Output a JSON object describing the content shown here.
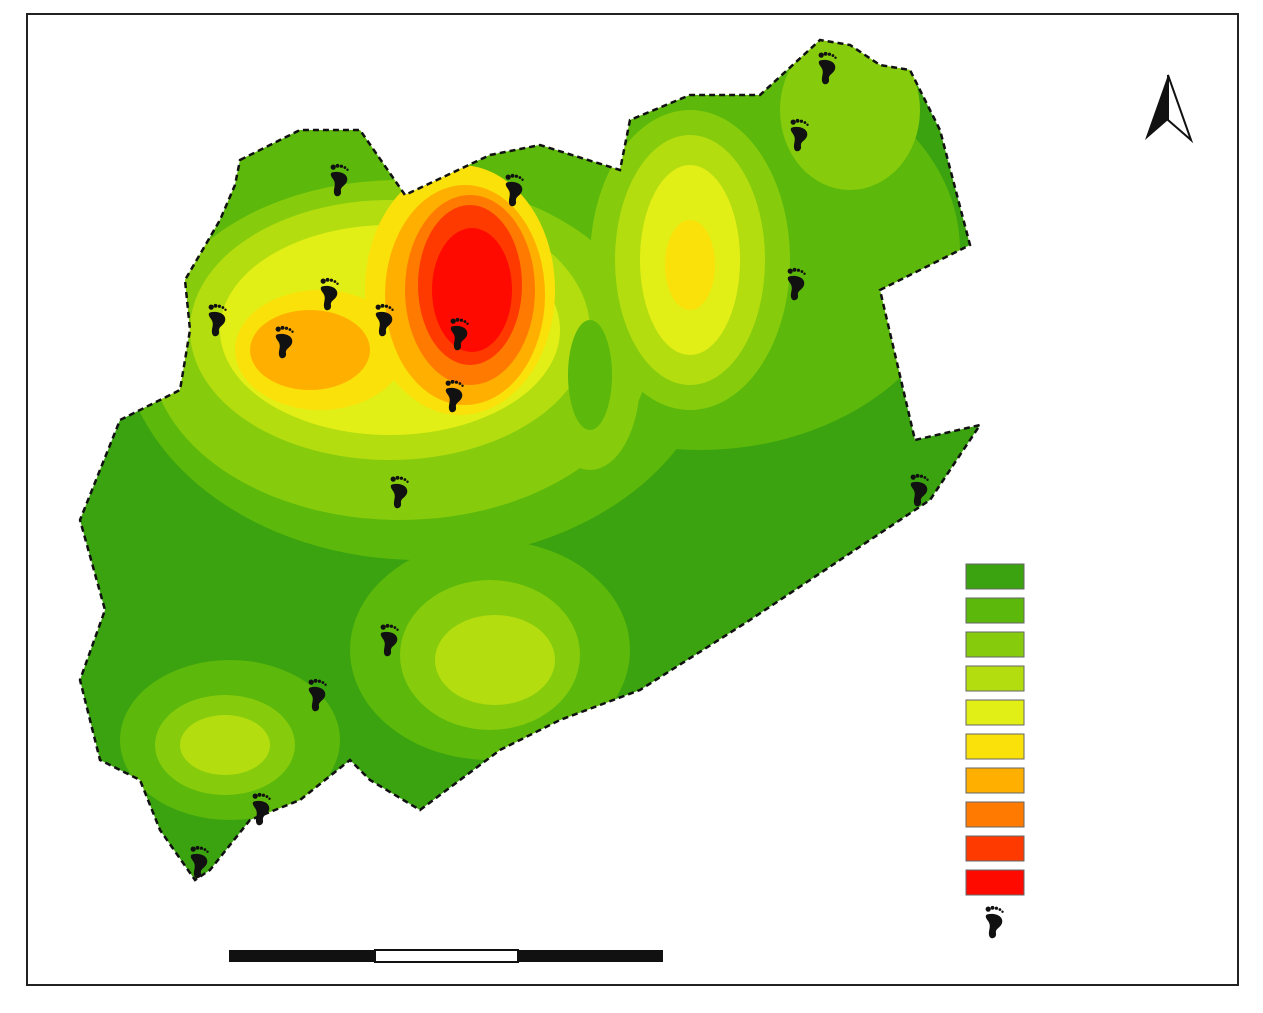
{
  "legend": {
    "colors": [
      "#3aa30f",
      "#5cb80a",
      "#86cc0c",
      "#b4dd10",
      "#e2ef16",
      "#fae10a",
      "#ffaf00",
      "#ff7a00",
      "#ff3a00",
      "#ff0a00"
    ]
  }
}
